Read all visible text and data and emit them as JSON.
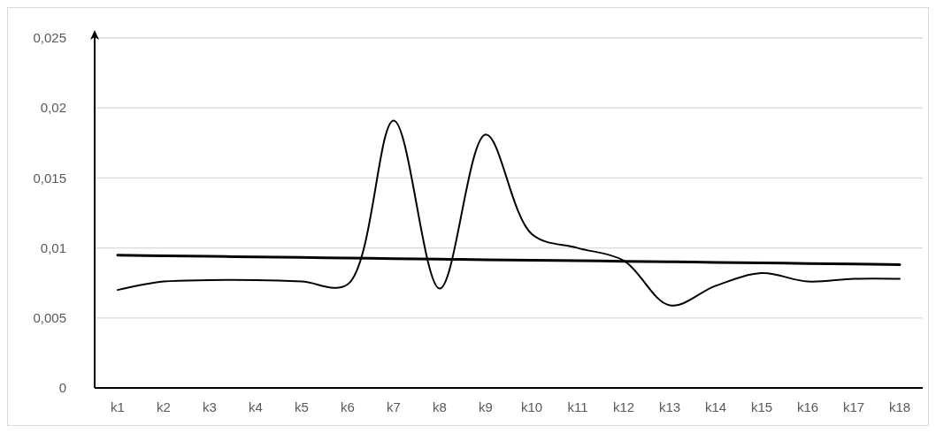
{
  "chart_data": {
    "type": "line",
    "categories": [
      "k1",
      "k2",
      "k3",
      "k4",
      "k5",
      "k6",
      "k7",
      "k8",
      "k9",
      "k10",
      "k11",
      "k12",
      "k13",
      "k14",
      "k15",
      "k16",
      "k17",
      "k18"
    ],
    "series": [
      {
        "color": "#000000",
        "values": [
          0.007,
          0.0076,
          0.0077,
          0.0077,
          0.0076,
          0.0074,
          0.0191,
          0.0071,
          0.0181,
          0.011,
          0.01,
          0.0091,
          0.0059,
          0.0073,
          0.0082,
          0.0076,
          0.0078,
          0.0078
        ]
      },
      {
        "color": "#000000",
        "values": [
          0.00948,
          0.00944,
          0.0094,
          0.00936,
          0.00932,
          0.00928,
          0.00924,
          0.0092,
          0.00916,
          0.00913,
          0.00909,
          0.00905,
          0.00901,
          0.00897,
          0.00893,
          0.00889,
          0.00885,
          0.00881
        ]
      }
    ],
    "ylim": [
      0,
      0.025
    ],
    "yticks": [
      0,
      {
        "value": 0.005,
        "label": "0,005"
      },
      {
        "value": 0.01,
        "label": "0,01"
      },
      {
        "value": 0.015,
        "label": "0,015"
      },
      {
        "value": 0.02,
        "label": "0,02"
      },
      {
        "value": 0.025,
        "label": "0,025"
      }
    ],
    "grid": "y",
    "marker": "none",
    "line_style": "solid"
  }
}
